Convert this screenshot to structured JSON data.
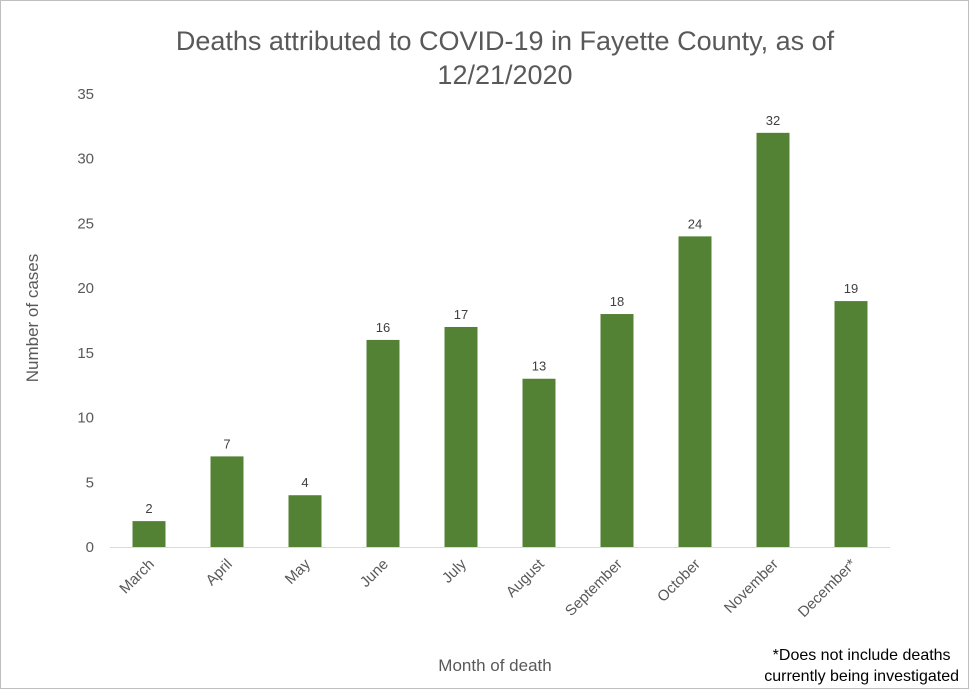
{
  "chart_data": {
    "type": "bar",
    "title": "Deaths attributed to COVID-19 in Fayette County, as of 12/21/2020",
    "title_lines": [
      "Deaths attributed to COVID-19 in Fayette County, as of",
      "12/21/2020"
    ],
    "xlabel": "Month of death",
    "ylabel": "Number of cases",
    "categories": [
      "March",
      "April",
      "May",
      "June",
      "July",
      "August",
      "September",
      "October",
      "November",
      "December*"
    ],
    "values": [
      2,
      7,
      4,
      16,
      17,
      13,
      18,
      24,
      32,
      19
    ],
    "ylim": [
      0,
      35
    ],
    "yticks": [
      0,
      5,
      10,
      15,
      20,
      25,
      30,
      35
    ],
    "bar_color": "#548235",
    "grid": false,
    "data_labels": true,
    "legend": "none",
    "footnote_lines": [
      "*Does not include deaths",
      "currently being investigated"
    ]
  }
}
